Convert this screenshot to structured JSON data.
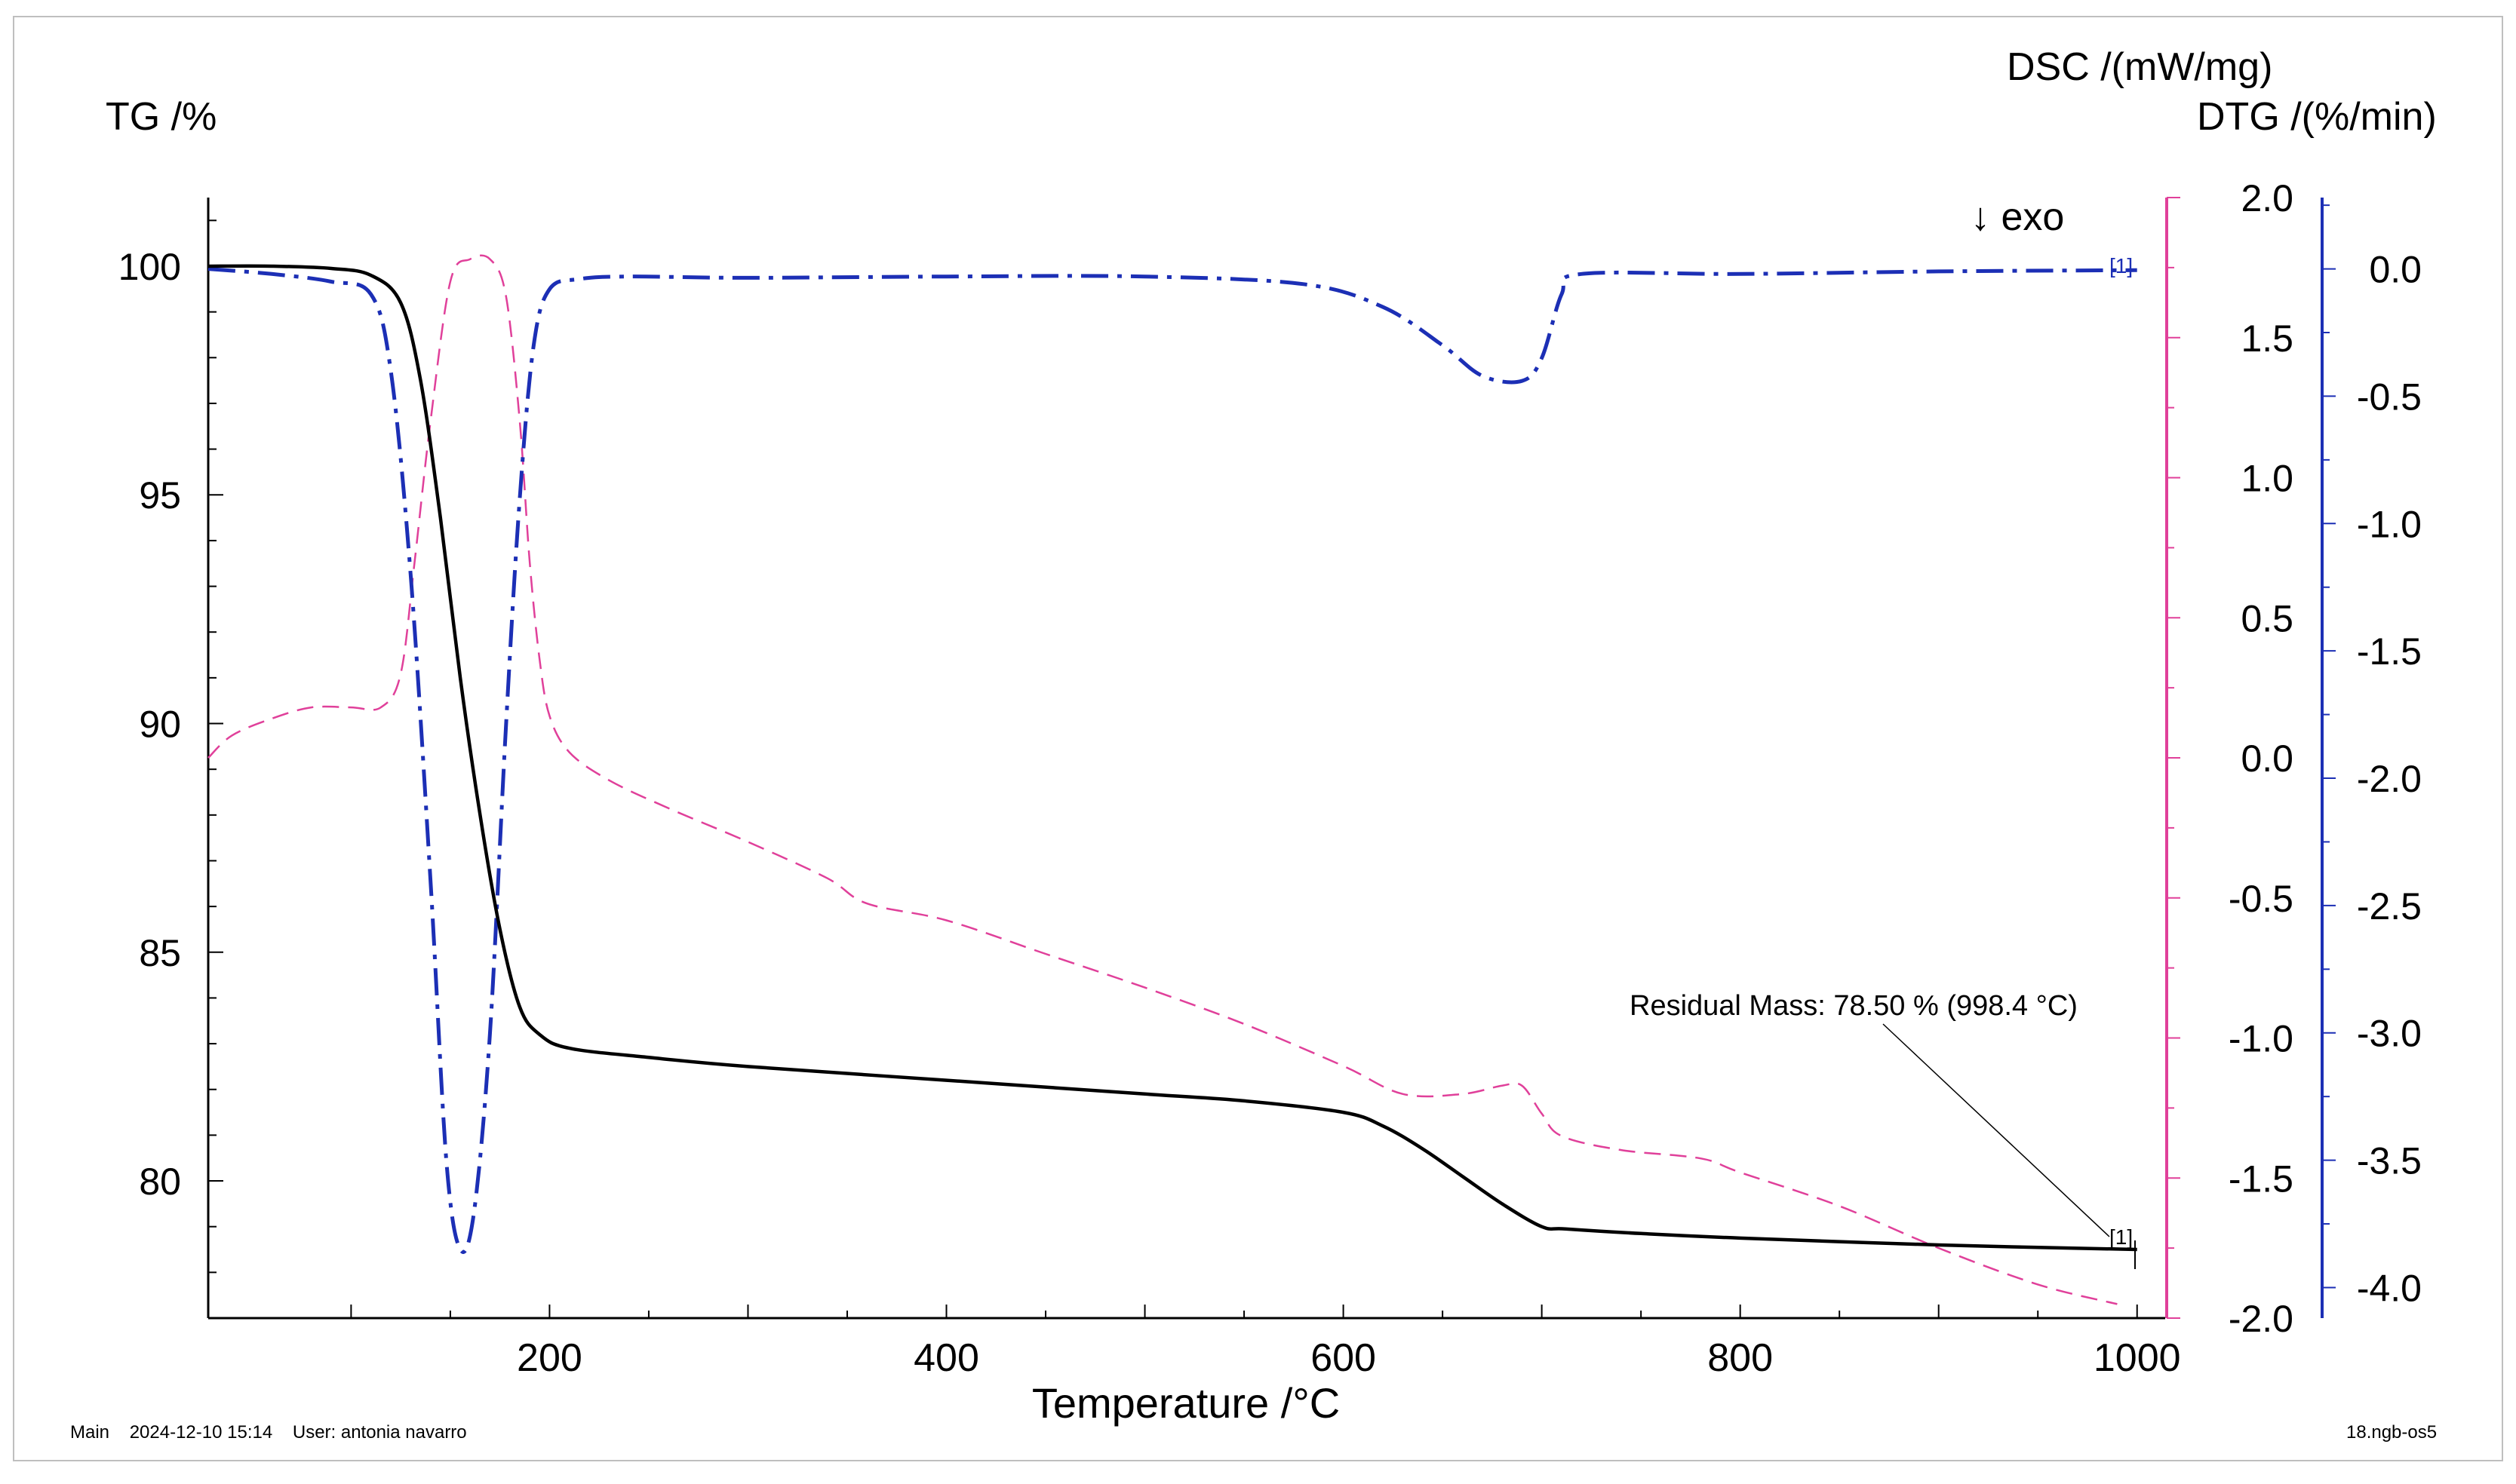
{
  "colors": {
    "tg": "#000000",
    "dsc": "#e0409a",
    "dtg": "#1c2fb5",
    "axis": "#000000"
  },
  "chart_data": {
    "type": "line",
    "xlabel": "Temperature /°C",
    "xlim": [
      28,
      1002
    ],
    "xticks": [
      200,
      400,
      600,
      800,
      1000
    ],
    "axes": {
      "tg": {
        "label": "TG /%",
        "lim": [
          77,
          101.5
        ],
        "ticks": [
          80,
          85,
          90,
          95,
          100
        ],
        "ticklabels": [
          "80",
          "85",
          "90",
          "95",
          "100"
        ]
      },
      "dsc": {
        "label": "DSC /(mW/mg)",
        "lim": [
          -2.0,
          2.0
        ],
        "ticks": [
          2.0,
          1.5,
          1.0,
          0.5,
          0.0,
          -0.5,
          -1.0,
          -1.5,
          -2.0
        ],
        "ticklabels": [
          "2.0",
          "1.5",
          "1.0",
          "0.5",
          "0.0",
          "-0.5",
          "-1.0",
          "-1.5",
          "-2.0"
        ]
      },
      "dtg": {
        "label": "DTG /(%/min)",
        "lim": [
          -4.12,
          0.28
        ],
        "ticks": [
          0.0,
          -0.5,
          -1.0,
          -1.5,
          -2.0,
          -2.5,
          -3.0,
          -3.5,
          -4.0
        ],
        "ticklabels": [
          "0.0",
          "-0.5",
          "-1.0",
          "-1.5",
          "-2.0",
          "-2.5",
          "-3.0",
          "-3.5",
          "-4.0"
        ]
      }
    },
    "series": [
      {
        "name": "TG",
        "axis": "tg",
        "style": "solid",
        "x": [
          28,
          60,
          90,
          110,
          125,
          135,
          145,
          155,
          165,
          175,
          185,
          195,
          210,
          250,
          300,
          400,
          500,
          550,
          600,
          620,
          640,
          660,
          680,
          700,
          712,
          750,
          800,
          900,
          1000
        ],
        "y": [
          100.0,
          100.0,
          99.95,
          99.8,
          99.2,
          97.5,
          94.5,
          91.0,
          88.0,
          85.5,
          83.8,
          83.2,
          82.9,
          82.7,
          82.5,
          82.2,
          81.9,
          81.75,
          81.5,
          81.2,
          80.7,
          80.1,
          79.5,
          79.0,
          78.95,
          78.85,
          78.75,
          78.6,
          78.5
        ]
      },
      {
        "name": "DSC",
        "axis": "dsc",
        "style": "dashed",
        "x": [
          28,
          40,
          60,
          80,
          100,
          115,
          125,
          132,
          140,
          150,
          160,
          170,
          178,
          185,
          190,
          195,
          200,
          210,
          230,
          260,
          300,
          340,
          360,
          400,
          450,
          500,
          550,
          600,
          630,
          660,
          680,
          690,
          700,
          710,
          740,
          780,
          800,
          850,
          900,
          950,
          990
        ],
        "y": [
          0.0,
          0.08,
          0.14,
          0.18,
          0.18,
          0.18,
          0.3,
          0.7,
          1.2,
          1.7,
          1.78,
          1.78,
          1.65,
          1.2,
          0.7,
          0.35,
          0.15,
          0.02,
          -0.08,
          -0.18,
          -0.3,
          -0.43,
          -0.52,
          -0.58,
          -0.7,
          -0.82,
          -0.95,
          -1.1,
          -1.2,
          -1.2,
          -1.17,
          -1.17,
          -1.27,
          -1.35,
          -1.4,
          -1.43,
          -1.48,
          -1.6,
          -1.75,
          -1.88,
          -1.95
        ]
      },
      {
        "name": "DTG",
        "axis": "dtg",
        "style": "dashdot",
        "x": [
          28,
          60,
          90,
          110,
          120,
          130,
          140,
          148,
          155,
          162,
          170,
          178,
          185,
          192,
          200,
          215,
          240,
          300,
          400,
          500,
          580,
          620,
          650,
          670,
          690,
          700,
          710,
          720,
          800,
          900,
          1000
        ],
        "y": [
          0.0,
          -0.02,
          -0.05,
          -0.1,
          -0.4,
          -1.2,
          -2.4,
          -3.5,
          -3.85,
          -3.7,
          -3.0,
          -1.8,
          -0.9,
          -0.3,
          -0.08,
          -0.04,
          -0.03,
          -0.035,
          -0.03,
          -0.03,
          -0.06,
          -0.15,
          -0.3,
          -0.42,
          -0.44,
          -0.35,
          -0.1,
          -0.02,
          -0.02,
          -0.01,
          -0.005
        ]
      }
    ],
    "annotations": {
      "residual": "Residual Mass: 78.50 % (998.4 °C)",
      "exo": "↓ exo",
      "marker_tg": "[1]",
      "marker_dtg": "[1]"
    }
  },
  "footer": {
    "left": "Main    2024-12-10 15:14    User: antonia navarro",
    "right": "18.ngb-os5"
  }
}
